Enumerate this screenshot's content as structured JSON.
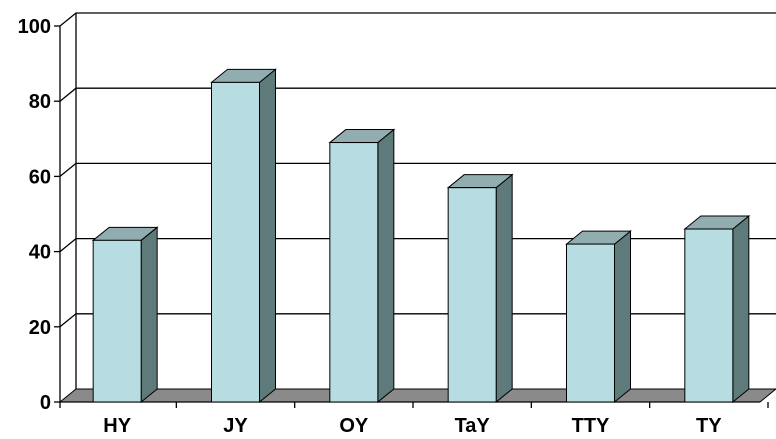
{
  "chart_data": {
    "type": "bar",
    "style": "3d-column",
    "title": "",
    "xlabel": "",
    "ylabel": "",
    "categories": [
      "HY",
      "JY",
      "OY",
      "TaY",
      "TTY",
      "TY"
    ],
    "values": [
      43,
      85,
      69,
      57,
      42,
      46
    ],
    "ylim": [
      0,
      100
    ],
    "yticks": [
      "0",
      "20",
      "40",
      "60",
      "80",
      "100"
    ],
    "grid": true,
    "legend": "none",
    "colors": {
      "bar_front": "#b7dde2",
      "bar_side": "#5f7a7b",
      "bar_top": "#91adb0",
      "floor": "#8a8a8a",
      "gridline": "#000000"
    }
  }
}
